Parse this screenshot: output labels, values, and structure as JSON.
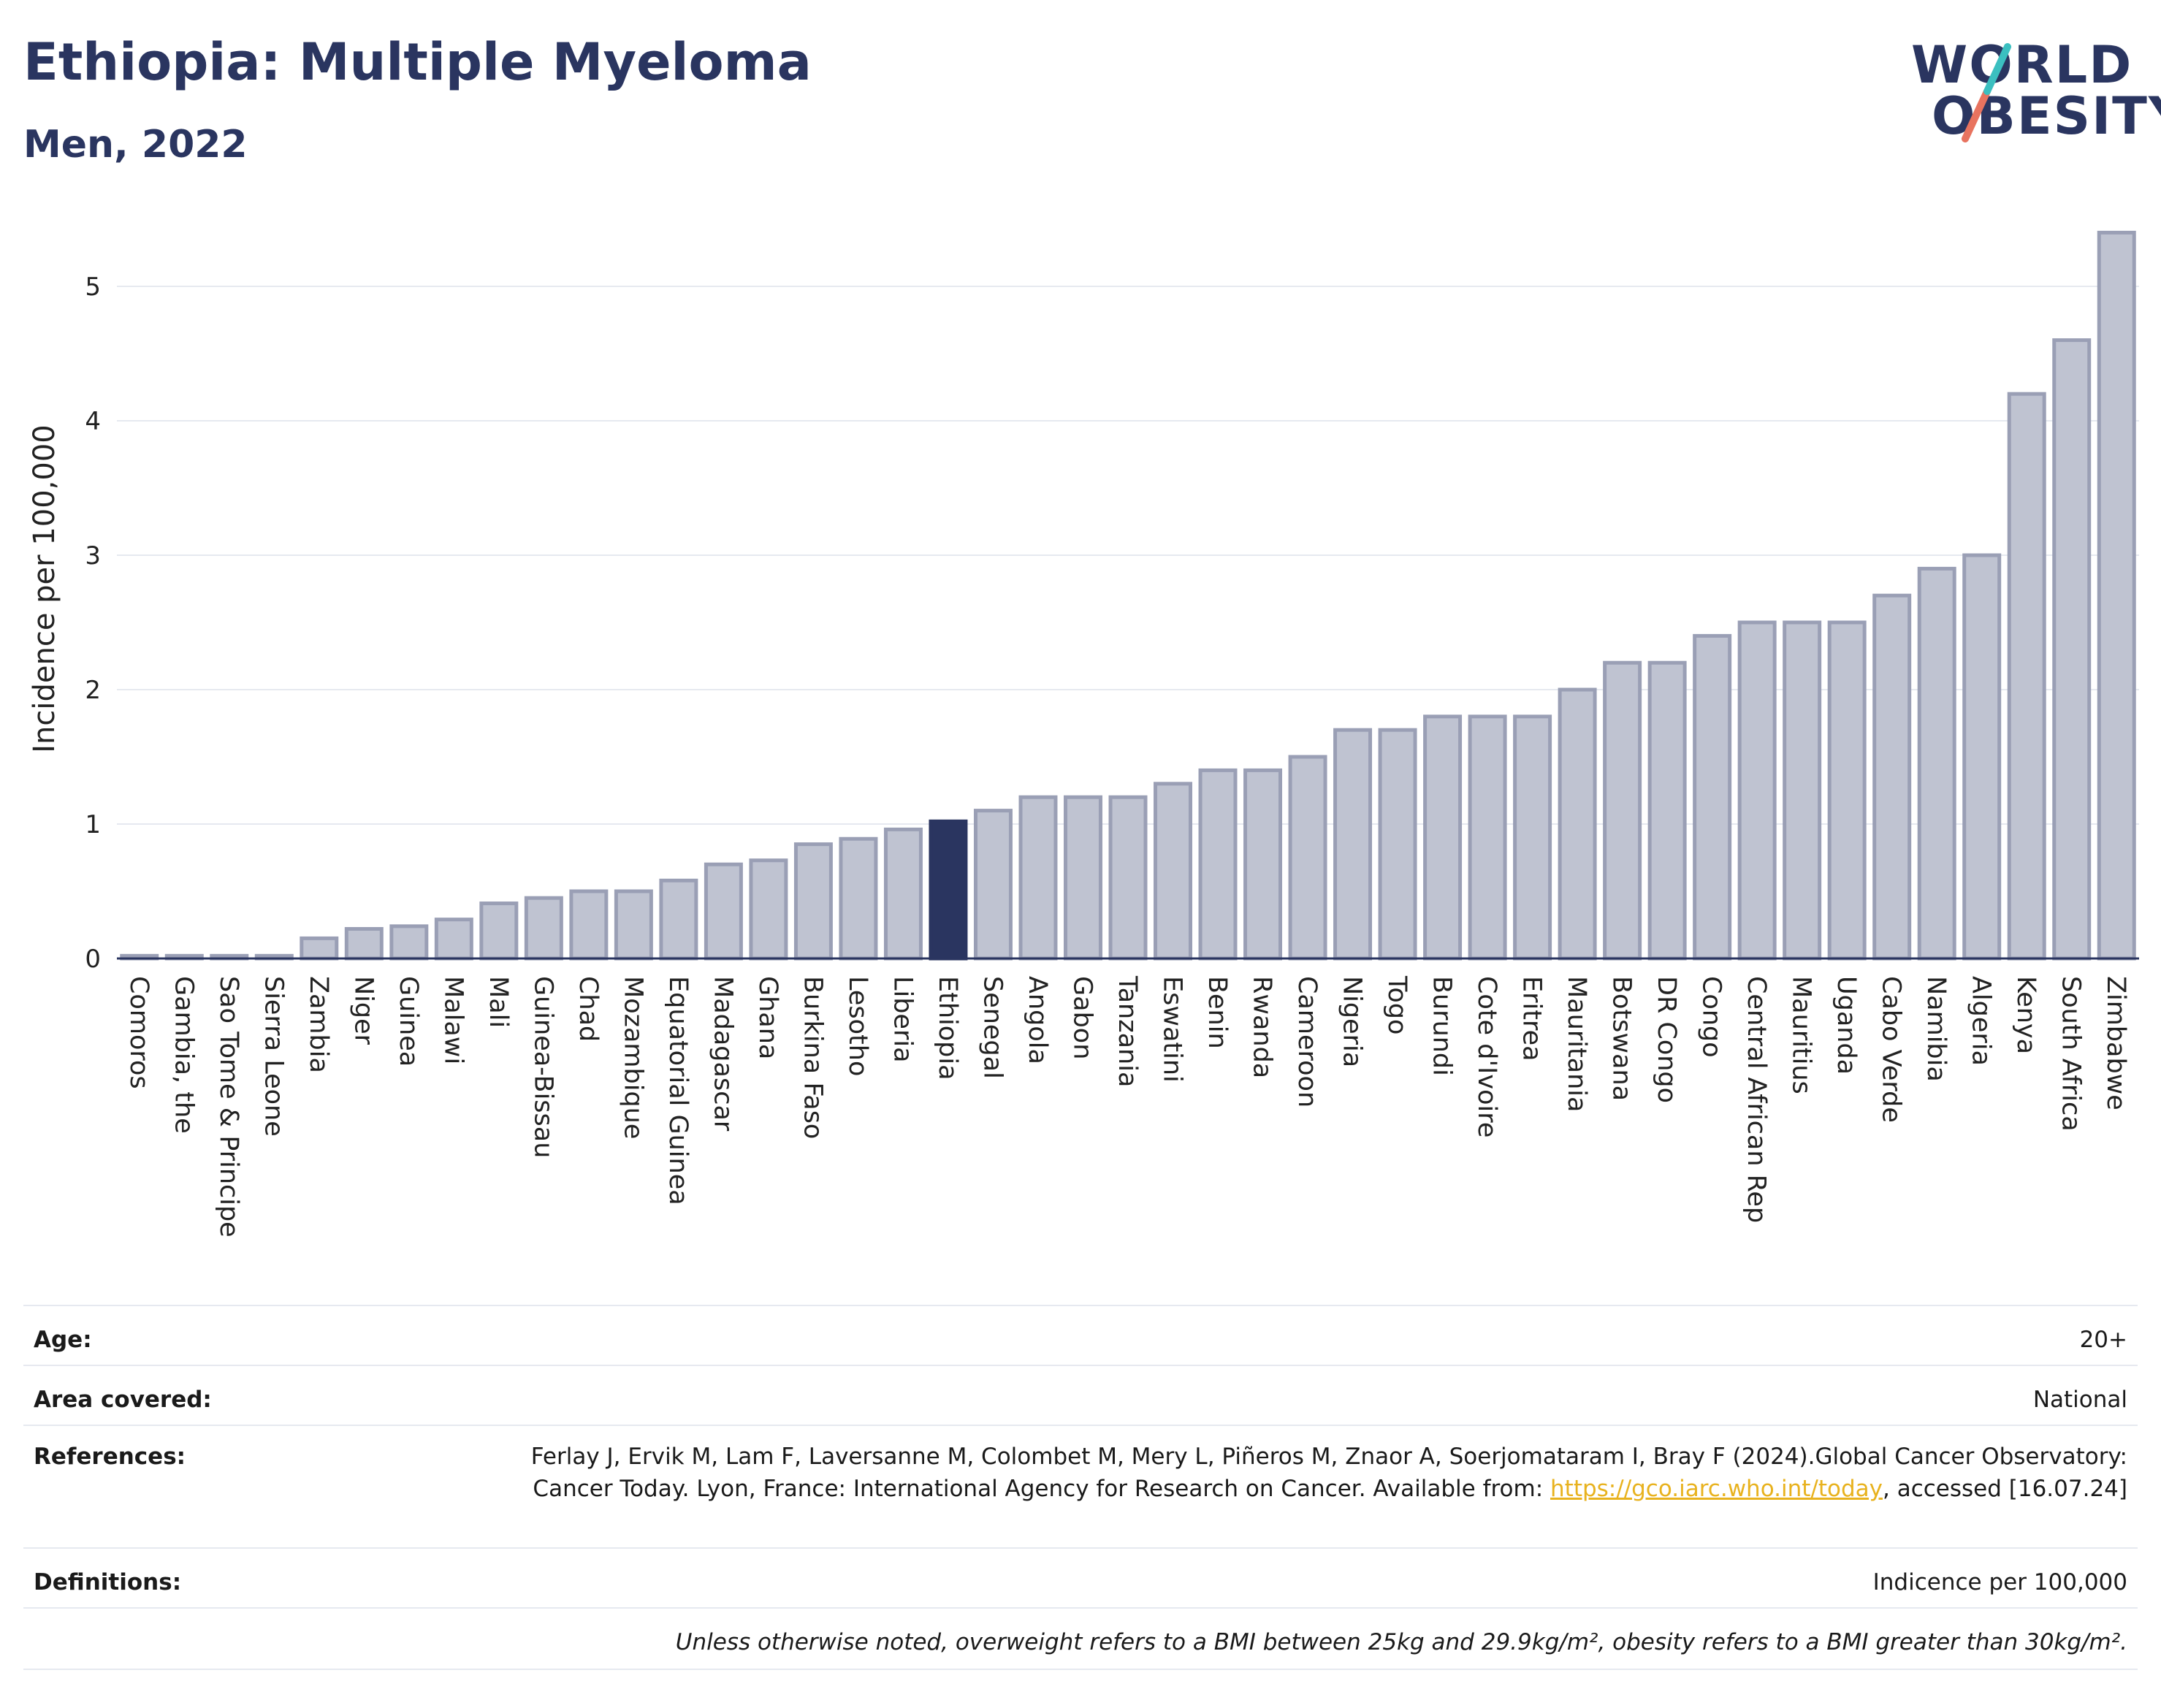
{
  "header": {
    "title": "Ethiopia: Multiple Myeloma",
    "subtitle": "Men, 2022",
    "logo_line1": "WORLD",
    "logo_line2": "OBESITY"
  },
  "colors": {
    "bar": "#bfc3d1",
    "bar_border": "#9a9fb5",
    "highlight": "#2a3560",
    "grid": "#e6e9f0",
    "logo_teal": "#3bbfc0",
    "logo_coral": "#e8735f"
  },
  "chart_data": {
    "type": "bar",
    "ylabel": "Incidence per 100,000",
    "ylim": [
      0,
      5.5
    ],
    "yticks": [
      0,
      1,
      2,
      3,
      4,
      5
    ],
    "grid": true,
    "highlight": "Ethiopia",
    "categories": [
      "Comoros",
      "Gambia, the",
      "Sao Tome & Principe",
      "Sierra Leone",
      "Zambia",
      "Niger",
      "Guinea",
      "Malawi",
      "Mali",
      "Guinea-Bissau",
      "Chad",
      "Mozambique",
      "Equatorial Guinea",
      "Madagascar",
      "Ghana",
      "Burkina Faso",
      "Lesotho",
      "Liberia",
      "Ethiopia",
      "Senegal",
      "Angola",
      "Gabon",
      "Tanzania",
      "Eswatini",
      "Benin",
      "Rwanda",
      "Cameroon",
      "Nigeria",
      "Togo",
      "Burundi",
      "Cote d'Ivoire",
      "Eritrea",
      "Mauritania",
      "Botswana",
      "DR Congo",
      "Congo",
      "Central African Rep",
      "Mauritius",
      "Uganda",
      "Cabo Verde",
      "Namibia",
      "Algeria",
      "Kenya",
      "South Africa",
      "Zimbabwe"
    ],
    "values": [
      0.02,
      0.02,
      0.02,
      0.02,
      0.15,
      0.22,
      0.24,
      0.29,
      0.41,
      0.45,
      0.5,
      0.5,
      0.58,
      0.7,
      0.73,
      0.85,
      0.89,
      0.96,
      1.02,
      1.1,
      1.2,
      1.2,
      1.2,
      1.3,
      1.4,
      1.4,
      1.5,
      1.7,
      1.7,
      1.8,
      1.8,
      1.8,
      2.0,
      2.2,
      2.2,
      2.4,
      2.5,
      2.5,
      2.5,
      2.7,
      2.9,
      3.0,
      4.2,
      4.6,
      5.4
    ]
  },
  "metadata": {
    "age_label": "Age:",
    "age_value": "20+",
    "area_label": "Area covered:",
    "area_value": "National",
    "references_label": "References:",
    "references_text": "Ferlay J, Ervik M, Lam F, Laversanne M, Colombet M, Mery L, Piñeros M, Znaor A, Soerjomataram I, Bray F (2024).Global Cancer Observatory: Cancer Today. Lyon, France: International Agency for Research on Cancer. Available from: ",
    "references_link": "https://gco.iarc.who.int/today",
    "references_suffix": ", accessed [16.07.24]",
    "definitions_label": "Definitions:",
    "definitions_value": "Indicence per 100,000",
    "note": "Unless otherwise noted, overweight refers to a BMI between 25kg and 29.9kg/m², obesity refers to a BMI greater than 30kg/m²."
  }
}
